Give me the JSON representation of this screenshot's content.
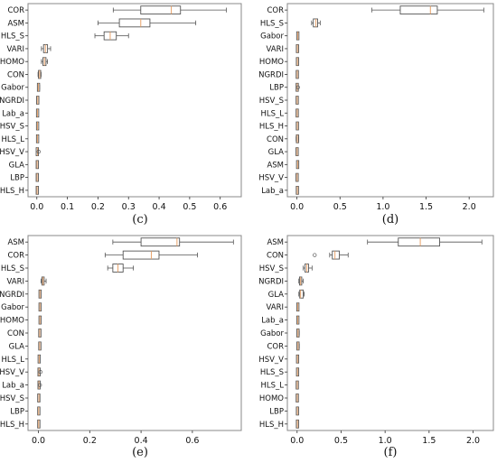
{
  "chart_data": [
    {
      "type": "box",
      "caption": "(c)",
      "xlim": [
        -0.02,
        0.66
      ],
      "xticks": [
        0.0,
        0.1,
        0.2,
        0.3,
        0.4,
        0.5,
        0.6
      ],
      "xtick_labels": [
        "0.0",
        "0.1",
        "0.2",
        "0.3",
        "0.4",
        "0.5",
        "0.6"
      ],
      "categories": [
        "COR",
        "ASM",
        "HLS_S",
        "VARI",
        "HOMO",
        "CON",
        "Gabor",
        "NGRDI",
        "Lab_a",
        "HSV_S",
        "HLS_L",
        "HSV_V",
        "GLA",
        "LBP",
        "HLS_H"
      ],
      "boxes": [
        {
          "whislo": 0.25,
          "q1": 0.34,
          "med": 0.44,
          "q3": 0.47,
          "whishi": 0.62,
          "fliers": []
        },
        {
          "whislo": 0.2,
          "q1": 0.27,
          "med": 0.34,
          "q3": 0.37,
          "whishi": 0.52,
          "fliers": []
        },
        {
          "whislo": 0.19,
          "q1": 0.22,
          "med": 0.24,
          "q3": 0.26,
          "whishi": 0.3,
          "fliers": []
        },
        {
          "whislo": 0.015,
          "q1": 0.022,
          "med": 0.028,
          "q3": 0.035,
          "whishi": 0.045,
          "fliers": []
        },
        {
          "whislo": 0.015,
          "q1": 0.02,
          "med": 0.025,
          "q3": 0.03,
          "whishi": 0.035,
          "fliers": []
        },
        {
          "whislo": 0.004,
          "q1": 0.007,
          "med": 0.009,
          "q3": 0.011,
          "whishi": 0.014,
          "fliers": []
        },
        {
          "whislo": 0.002,
          "q1": 0.004,
          "med": 0.005,
          "q3": 0.007,
          "whishi": 0.009,
          "fliers": []
        },
        {
          "whislo": 0.001,
          "q1": 0.002,
          "med": 0.003,
          "q3": 0.004,
          "whishi": 0.006,
          "fliers": []
        },
        {
          "whislo": 0.001,
          "q1": 0.002,
          "med": 0.002,
          "q3": 0.003,
          "whishi": 0.004,
          "fliers": []
        },
        {
          "whislo": 0.001,
          "q1": 0.002,
          "med": 0.002,
          "q3": 0.003,
          "whishi": 0.004,
          "fliers": []
        },
        {
          "whislo": 0.001,
          "q1": 0.002,
          "med": 0.002,
          "q3": 0.003,
          "whishi": 0.004,
          "fliers": []
        },
        {
          "whislo": 0.001,
          "q1": 0.001,
          "med": 0.002,
          "q3": 0.002,
          "whishi": 0.003,
          "fliers": [
            0.006
          ]
        },
        {
          "whislo": 0.0,
          "q1": 0.001,
          "med": 0.001,
          "q3": 0.002,
          "whishi": 0.003,
          "fliers": []
        },
        {
          "whislo": 0.0,
          "q1": 0.001,
          "med": 0.001,
          "q3": 0.002,
          "whishi": 0.003,
          "fliers": []
        },
        {
          "whislo": 0.0,
          "q1": 0.001,
          "med": 0.001,
          "q3": 0.002,
          "whishi": 0.003,
          "fliers": []
        }
      ]
    },
    {
      "type": "box",
      "caption": "(d)",
      "xlim": [
        -0.08,
        2.25
      ],
      "xticks": [
        0.0,
        0.5,
        1.0,
        1.5,
        2.0
      ],
      "xtick_labels": [
        "0.0",
        "0.5",
        "1.0",
        "1.5",
        "2.0"
      ],
      "categories": [
        "COR",
        "HLS_S",
        "Gabor",
        "VARI",
        "HOMO",
        "NGRDI",
        "LBP",
        "HSV_S",
        "HLS_L",
        "HLS_H",
        "CON",
        "GLA",
        "ASM",
        "HSV_V",
        "Lab_a"
      ],
      "boxes": [
        {
          "whislo": 0.87,
          "q1": 1.2,
          "med": 1.55,
          "q3": 1.63,
          "whishi": 2.17,
          "fliers": []
        },
        {
          "whislo": 0.17,
          "q1": 0.19,
          "med": 0.22,
          "q3": 0.24,
          "whishi": 0.27,
          "fliers": []
        },
        {
          "whislo": 0.002,
          "q1": 0.006,
          "med": 0.01,
          "q3": 0.014,
          "whishi": 0.018,
          "fliers": []
        },
        {
          "whislo": 0.002,
          "q1": 0.004,
          "med": 0.006,
          "q3": 0.008,
          "whishi": 0.01,
          "fliers": []
        },
        {
          "whislo": 0.002,
          "q1": 0.004,
          "med": 0.006,
          "q3": 0.008,
          "whishi": 0.01,
          "fliers": []
        },
        {
          "whislo": 0.001,
          "q1": 0.003,
          "med": 0.004,
          "q3": 0.005,
          "whishi": 0.007,
          "fliers": []
        },
        {
          "whislo": 0.001,
          "q1": 0.002,
          "med": 0.003,
          "q3": 0.004,
          "whishi": 0.006,
          "fliers": [
            0.012
          ]
        },
        {
          "whislo": 0.001,
          "q1": 0.002,
          "med": 0.003,
          "q3": 0.004,
          "whishi": 0.005,
          "fliers": []
        },
        {
          "whislo": 0.001,
          "q1": 0.002,
          "med": 0.003,
          "q3": 0.004,
          "whishi": 0.005,
          "fliers": []
        },
        {
          "whislo": 0.001,
          "q1": 0.003,
          "med": 0.005,
          "q3": 0.007,
          "whishi": 0.01,
          "fliers": []
        },
        {
          "whislo": -0.01,
          "q1": 0.0,
          "med": 0.005,
          "q3": 0.012,
          "whishi": 0.02,
          "fliers": []
        },
        {
          "whislo": 0.0,
          "q1": 0.001,
          "med": 0.002,
          "q3": 0.003,
          "whishi": 0.004,
          "fliers": []
        },
        {
          "whislo": 0.001,
          "q1": 0.004,
          "med": 0.008,
          "q3": 0.012,
          "whishi": 0.016,
          "fliers": []
        },
        {
          "whislo": 0.0,
          "q1": 0.001,
          "med": 0.002,
          "q3": 0.003,
          "whishi": 0.004,
          "fliers": []
        },
        {
          "whislo": -0.005,
          "q1": 0.0,
          "med": 0.005,
          "q3": 0.01,
          "whishi": 0.015,
          "fliers": []
        }
      ]
    },
    {
      "type": "box",
      "caption": "(e)",
      "xlim": [
        -0.03,
        0.78
      ],
      "xticks": [
        0.0,
        0.2,
        0.4,
        0.6
      ],
      "xtick_labels": [
        "0.0",
        "0.2",
        "0.4",
        "0.6"
      ],
      "categories": [
        "ASM",
        "COR",
        "HLS_S",
        "VARI",
        "NGRDI",
        "Gabor",
        "HOMO",
        "CON",
        "GLA",
        "HLS_L",
        "HSV_V",
        "Lab_a",
        "HSV_S",
        "LBP",
        "HLS_H"
      ],
      "boxes": [
        {
          "whislo": 0.29,
          "q1": 0.4,
          "med": 0.54,
          "q3": 0.55,
          "whishi": 0.76,
          "fliers": []
        },
        {
          "whislo": 0.26,
          "q1": 0.33,
          "med": 0.44,
          "q3": 0.47,
          "whishi": 0.62,
          "fliers": []
        },
        {
          "whislo": 0.27,
          "q1": 0.29,
          "med": 0.31,
          "q3": 0.33,
          "whishi": 0.37,
          "fliers": []
        },
        {
          "whislo": 0.01,
          "q1": 0.014,
          "med": 0.018,
          "q3": 0.022,
          "whishi": 0.03,
          "fliers": []
        },
        {
          "whislo": 0.003,
          "q1": 0.005,
          "med": 0.006,
          "q3": 0.008,
          "whishi": 0.01,
          "fliers": []
        },
        {
          "whislo": 0.003,
          "q1": 0.005,
          "med": 0.006,
          "q3": 0.008,
          "whishi": 0.01,
          "fliers": []
        },
        {
          "whislo": 0.003,
          "q1": 0.005,
          "med": 0.006,
          "q3": 0.008,
          "whishi": 0.01,
          "fliers": []
        },
        {
          "whislo": 0.002,
          "q1": 0.004,
          "med": 0.005,
          "q3": 0.007,
          "whishi": 0.009,
          "fliers": []
        },
        {
          "whislo": 0.002,
          "q1": 0.004,
          "med": 0.005,
          "q3": 0.007,
          "whishi": 0.009,
          "fliers": []
        },
        {
          "whislo": 0.001,
          "q1": 0.002,
          "med": 0.003,
          "q3": 0.004,
          "whishi": 0.005,
          "fliers": []
        },
        {
          "whislo": 0.001,
          "q1": 0.002,
          "med": 0.002,
          "q3": 0.003,
          "whishi": 0.004,
          "fliers": [
            0.008
          ]
        },
        {
          "whislo": 0.001,
          "q1": 0.002,
          "med": 0.002,
          "q3": 0.003,
          "whishi": 0.004,
          "fliers": [
            0.006
          ]
        },
        {
          "whislo": 0.001,
          "q1": 0.001,
          "med": 0.002,
          "q3": 0.002,
          "whishi": 0.003,
          "fliers": []
        },
        {
          "whislo": 0.0,
          "q1": 0.001,
          "med": 0.001,
          "q3": 0.002,
          "whishi": 0.003,
          "fliers": []
        },
        {
          "whislo": 0.0,
          "q1": 0.001,
          "med": 0.001,
          "q3": 0.002,
          "whishi": 0.003,
          "fliers": []
        }
      ]
    },
    {
      "type": "box",
      "caption": "(f)",
      "xlim": [
        -0.08,
        2.2
      ],
      "xticks": [
        0.0,
        0.5,
        1.0,
        1.5,
        2.0
      ],
      "xtick_labels": [
        "0.0",
        "0.5",
        "1.0",
        "1.5",
        "2.0"
      ],
      "categories": [
        "ASM",
        "CON",
        "HSV_S",
        "NGRDI",
        "GLA",
        "VARI",
        "Lab_a",
        "Gabor",
        "COR",
        "HSV_V",
        "HLS_S",
        "HLS_L",
        "HOMO",
        "LBP",
        "HLS_H"
      ],
      "boxes": [
        {
          "whislo": 0.8,
          "q1": 1.15,
          "med": 1.4,
          "q3": 1.62,
          "whishi": 2.1,
          "fliers": []
        },
        {
          "whislo": 0.37,
          "q1": 0.4,
          "med": 0.43,
          "q3": 0.48,
          "whishi": 0.58,
          "fliers": [
            0.2
          ]
        },
        {
          "whislo": 0.07,
          "q1": 0.09,
          "med": 0.11,
          "q3": 0.13,
          "whishi": 0.17,
          "fliers": []
        },
        {
          "whislo": 0.02,
          "q1": 0.03,
          "med": 0.04,
          "q3": 0.05,
          "whishi": 0.07,
          "fliers": []
        },
        {
          "whislo": 0.02,
          "q1": 0.03,
          "med": 0.04,
          "q3": 0.07,
          "whishi": 0.08,
          "fliers": []
        },
        {
          "whislo": 0.002,
          "q1": 0.005,
          "med": 0.008,
          "q3": 0.012,
          "whishi": 0.016,
          "fliers": []
        },
        {
          "whislo": 0.002,
          "q1": 0.005,
          "med": 0.008,
          "q3": 0.012,
          "whishi": 0.016,
          "fliers": []
        },
        {
          "whislo": 0.001,
          "q1": 0.005,
          "med": 0.01,
          "q3": 0.015,
          "whishi": 0.025,
          "fliers": []
        },
        {
          "whislo": 0.001,
          "q1": 0.005,
          "med": 0.01,
          "q3": 0.015,
          "whishi": 0.025,
          "fliers": []
        },
        {
          "whislo": 0.001,
          "q1": 0.003,
          "med": 0.005,
          "q3": 0.008,
          "whishi": 0.012,
          "fliers": []
        },
        {
          "whislo": 0.001,
          "q1": 0.003,
          "med": 0.005,
          "q3": 0.008,
          "whishi": 0.01,
          "fliers": []
        },
        {
          "whislo": 0.0,
          "q1": 0.001,
          "med": 0.002,
          "q3": 0.003,
          "whishi": 0.004,
          "fliers": []
        },
        {
          "whislo": 0.0,
          "q1": 0.001,
          "med": 0.002,
          "q3": 0.003,
          "whishi": 0.004,
          "fliers": []
        },
        {
          "whislo": 0.0,
          "q1": 0.002,
          "med": 0.004,
          "q3": 0.006,
          "whishi": 0.008,
          "fliers": []
        },
        {
          "whislo": 0.0,
          "q1": 0.002,
          "med": 0.004,
          "q3": 0.006,
          "whishi": 0.008,
          "fliers": []
        }
      ]
    }
  ],
  "colors": {
    "box": "#555555",
    "median": "#e8a36b",
    "frame": "#888888",
    "text": "#111111"
  }
}
